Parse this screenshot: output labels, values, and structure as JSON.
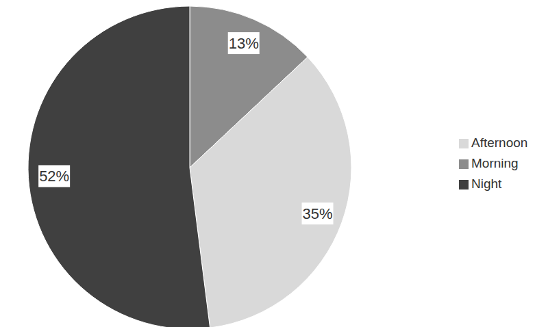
{
  "chart_data": {
    "type": "pie",
    "categories": [
      "Morning",
      "Afternoon",
      "Night"
    ],
    "values": [
      13,
      35,
      52
    ],
    "value_labels": [
      "13%",
      "35%",
      "52%"
    ],
    "colors": [
      "#8c8c8c",
      "#d9d9d9",
      "#404040"
    ],
    "data_labels": true,
    "legend": "right"
  }
}
